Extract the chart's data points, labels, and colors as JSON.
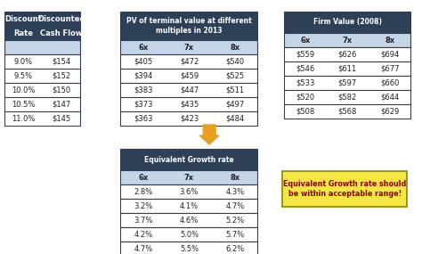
{
  "table1_header": [
    "Discount\nRate",
    "Discounted\nCash Flow"
  ],
  "table1_rows": [
    [
      "9.0%",
      "$154"
    ],
    [
      "9.5%",
      "$152"
    ],
    [
      "10.0%",
      "$150"
    ],
    [
      "10.5%",
      "$147"
    ],
    [
      "11.0%",
      "$145"
    ]
  ],
  "table2_title": "PV of terminal value at different\nmultiples in 2013",
  "table2_header": [
    "6x",
    "7x",
    "8x"
  ],
  "table2_rows": [
    [
      "$405",
      "$472",
      "$540"
    ],
    [
      "$394",
      "$459",
      "$525"
    ],
    [
      "$383",
      "$447",
      "$511"
    ],
    [
      "$373",
      "$435",
      "$497"
    ],
    [
      "$363",
      "$423",
      "$484"
    ]
  ],
  "table3_title": "Firm Value (2008)",
  "table3_header": [
    "6x",
    "7x",
    "8x"
  ],
  "table3_rows": [
    [
      "$559",
      "$626",
      "$694"
    ],
    [
      "$546",
      "$611",
      "$677"
    ],
    [
      "$533",
      "$597",
      "$660"
    ],
    [
      "$520",
      "$582",
      "$644"
    ],
    [
      "$508",
      "$568",
      "$629"
    ]
  ],
  "table4_title": "Equivalent Growth rate",
  "table4_header": [
    "6x",
    "7x",
    "8x"
  ],
  "table4_rows": [
    [
      "2.8%",
      "3.6%",
      "4.3%"
    ],
    [
      "3.2%",
      "4.1%",
      "4.7%"
    ],
    [
      "3.7%",
      "4.6%",
      "5.2%"
    ],
    [
      "4.2%",
      "5.0%",
      "5.7%"
    ],
    [
      "4.7%",
      "5.5%",
      "6.2%"
    ]
  ],
  "annotation": "Equivalent Growth rate should\nbe within acceptable range!",
  "header_bg": "#2e4057",
  "header_fg": "#ffffff",
  "subheader_bg": "#c5d5e8",
  "row_bg": "#ffffff",
  "border_color": "#2e4057",
  "annotation_bg": "#f5e642",
  "annotation_fg": "#8b0000",
  "arrow_color": "#e8a020"
}
